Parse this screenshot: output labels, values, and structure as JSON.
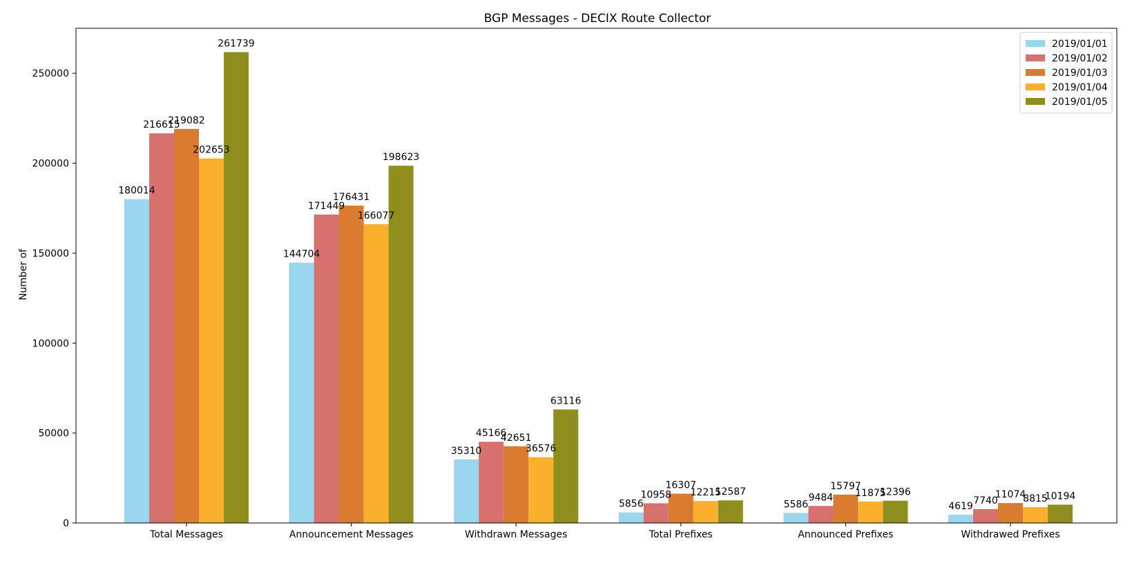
{
  "chart_data": {
    "type": "bar",
    "title": "BGP Messages - DECIX Route Collector",
    "xlabel": "",
    "ylabel": "Number of",
    "ylim": [
      0,
      275000
    ],
    "yticks": [
      0,
      50000,
      100000,
      150000,
      200000,
      250000
    ],
    "ytick_labels": [
      "0",
      "50000",
      "100000",
      "150000",
      "200000",
      "250000"
    ],
    "grid": false,
    "legend_position": "top-right",
    "categories": [
      "Total Messages",
      "Announcement Messages",
      "Withdrawn Messages",
      "Total Prefixes",
      "Announced Prefixes",
      "Withdrawed Prefixes"
    ],
    "series": [
      {
        "name": "2019/01/01",
        "color": "#9ad7ee",
        "values": [
          180014,
          144704,
          35310,
          5856,
          5586,
          4619
        ],
        "labels": [
          "180014",
          "144704",
          "35310",
          "5856",
          "5586",
          "4619"
        ]
      },
      {
        "name": "2019/01/02",
        "color": "#d6716e",
        "values": [
          216615,
          171449,
          45166,
          10958,
          9484,
          7740
        ],
        "labels": [
          "216615",
          "171449",
          "45166",
          "10958",
          "9484",
          "7740"
        ]
      },
      {
        "name": "2019/01/03",
        "color": "#d97c32",
        "values": [
          219082,
          176431,
          42651,
          16307,
          15797,
          11074
        ],
        "labels": [
          "219082",
          "176431",
          "42651",
          "16307",
          "15797",
          "11074"
        ]
      },
      {
        "name": "2019/01/04",
        "color": "#fbb02d",
        "values": [
          202653,
          166077,
          36576,
          12215,
          11875,
          8815
        ],
        "labels": [
          "202653",
          "166077",
          "36576",
          "12215",
          "11875",
          "8815"
        ]
      },
      {
        "name": "2019/01/05",
        "color": "#8f8f1e",
        "values": [
          261739,
          198623,
          63116,
          12587,
          12396,
          10194
        ],
        "labels": [
          "261739",
          "198623",
          "63116",
          "12587",
          "12396",
          "10194"
        ]
      }
    ]
  }
}
